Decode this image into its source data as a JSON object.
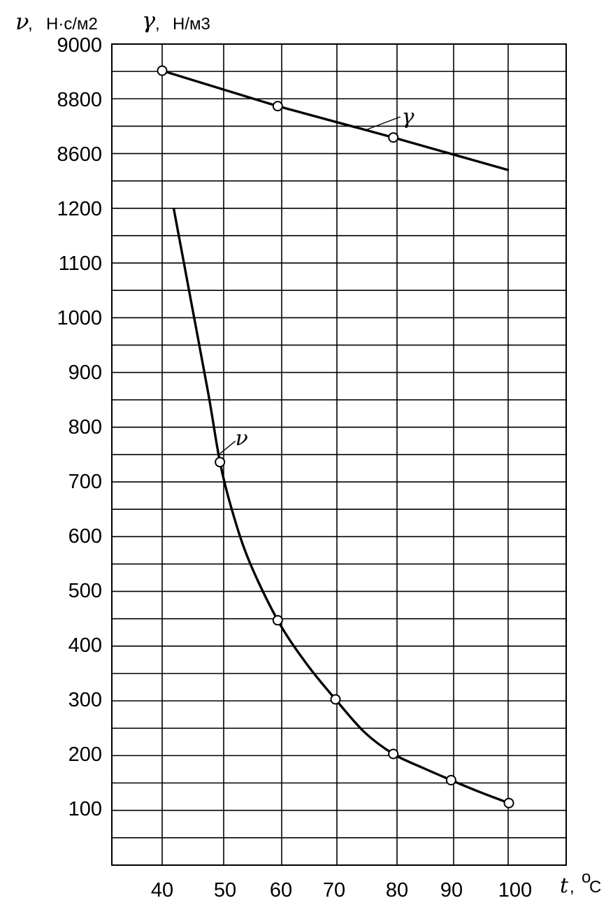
{
  "chart_data": {
    "type": "line",
    "title": "",
    "xlabel": {
      "var": "t",
      "unit": "°C",
      "unit_sup": "o",
      "unit_main": "C"
    },
    "ylabel_left": {
      "symbol": "ν",
      "unit": "Н·с/м2"
    },
    "ylabel_right": {
      "symbol": "γ",
      "unit": "Н/м3"
    },
    "x_ticks": [
      40,
      50,
      60,
      70,
      80,
      90,
      100
    ],
    "y_ticks_gamma": [
      9000,
      8800,
      8600
    ],
    "y_ticks_nu": [
      1200,
      1100,
      1000,
      900,
      800,
      700,
      600,
      500,
      400,
      300,
      200,
      100
    ],
    "grid": true,
    "series": [
      {
        "name": "γ",
        "axis": "gamma",
        "x": [
          40,
          60,
          80,
          100
        ],
        "y": [
          8905,
          8775,
          8660,
          8540
        ],
        "markers_x": [
          40,
          60,
          80
        ],
        "markers_y": [
          8905,
          8775,
          8660
        ],
        "label_at": 80
      },
      {
        "name": "ν",
        "axis": "nu",
        "x": [
          42,
          45,
          48,
          50,
          52,
          55,
          60,
          65,
          70,
          75,
          80,
          85,
          90,
          95,
          100
        ],
        "y": [
          1200,
          1030,
          860,
          735,
          650,
          555,
          445,
          365,
          300,
          240,
          200,
          175,
          152,
          130,
          110
        ],
        "markers_x": [
          50,
          60,
          70,
          80,
          90,
          100
        ],
        "markers_y": [
          735,
          445,
          300,
          200,
          152,
          110
        ],
        "label_at": 50
      }
    ]
  }
}
